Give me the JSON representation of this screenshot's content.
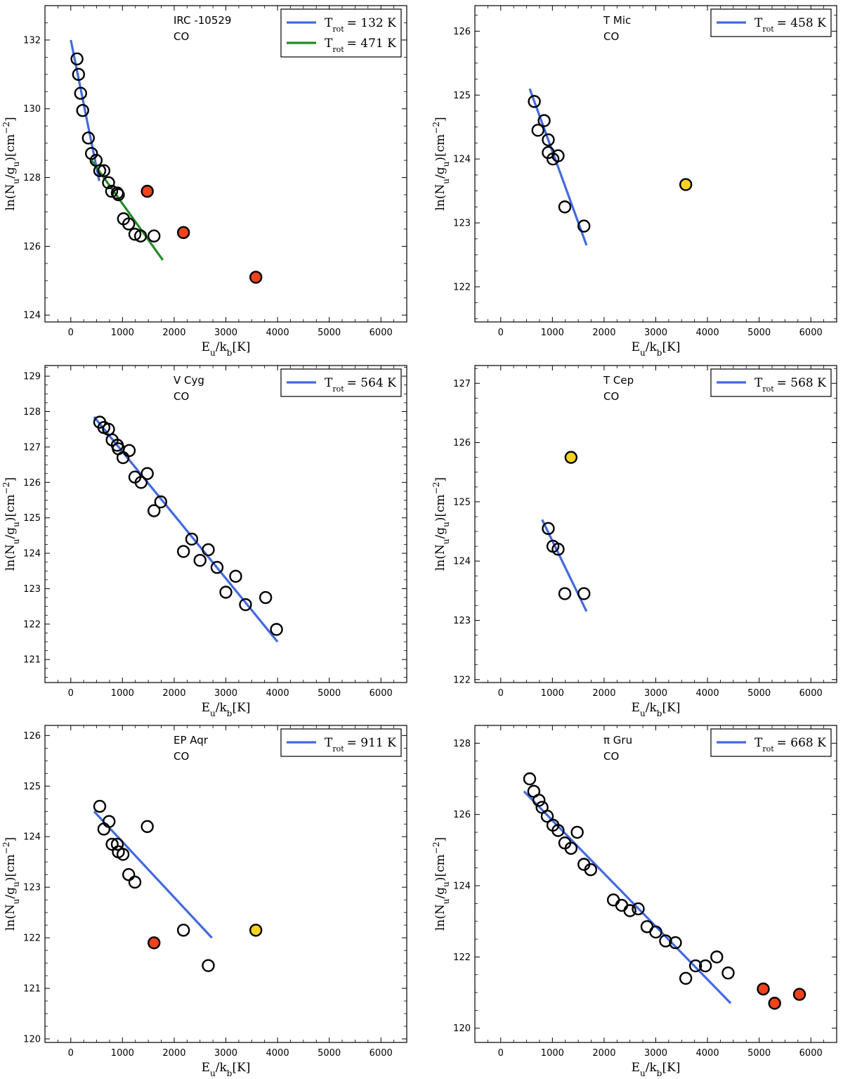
{
  "chart_data": [
    {
      "type": "scatter",
      "title": "",
      "star": "IRC -10529",
      "molecule": "CO",
      "xlabel": "E_u/k_b[K]",
      "ylabel": "ln(N_u/g_u)[cm^-2]",
      "xlim": [
        -500,
        6500
      ],
      "ylim": [
        123.8,
        133.0
      ],
      "xticks": [
        0,
        1000,
        2000,
        3000,
        4000,
        5000,
        6000
      ],
      "yticks": [
        124,
        126,
        128,
        130,
        132
      ],
      "fits": [
        {
          "label": "T_rot = 132 K",
          "label_main": "T",
          "label_sub": "rot",
          "label_value": "= 132 K",
          "color": "#4169E1",
          "x": [
            0,
            550
          ],
          "y": [
            132.0,
            127.9
          ]
        },
        {
          "label": "T_rot = 471 K",
          "label_main": "T",
          "label_sub": "rot",
          "label_value": "= 471 K",
          "color": "#228B22",
          "x": [
            400,
            1780
          ],
          "y": [
            128.5,
            125.6
          ]
        }
      ],
      "points_open": [
        [
          120,
          131.45
        ],
        [
          150,
          131.0
        ],
        [
          190,
          130.45
        ],
        [
          230,
          129.95
        ],
        [
          340,
          129.15
        ],
        [
          400,
          128.7
        ],
        [
          490,
          128.5
        ],
        [
          560,
          128.2
        ],
        [
          640,
          128.2
        ],
        [
          730,
          127.85
        ],
        [
          790,
          127.6
        ],
        [
          900,
          127.55
        ],
        [
          920,
          127.5
        ],
        [
          1020,
          126.8
        ],
        [
          1120,
          126.65
        ],
        [
          1240,
          126.35
        ],
        [
          1350,
          126.3
        ],
        [
          1610,
          126.3
        ]
      ],
      "points_red": [
        [
          1480,
          127.6
        ],
        [
          2180,
          126.4
        ],
        [
          3580,
          125.1
        ]
      ],
      "points_yellow": []
    },
    {
      "type": "scatter",
      "title": "",
      "star": "T Mic",
      "molecule": "CO",
      "xlabel": "E_u/k_b[K]",
      "ylabel": "ln(N_u/g_u)[cm^-2]",
      "xlim": [
        -500,
        6500
      ],
      "ylim": [
        121.45,
        126.4
      ],
      "xticks": [
        0,
        1000,
        2000,
        3000,
        4000,
        5000,
        6000
      ],
      "yticks": [
        122,
        123,
        124,
        125,
        126
      ],
      "fits": [
        {
          "label": "T_rot = 458 K",
          "label_main": "T",
          "label_sub": "rot",
          "label_value": "= 458 K",
          "color": "#4169E1",
          "x": [
            560,
            1660
          ],
          "y": [
            125.1,
            122.65
          ]
        }
      ],
      "points_open": [
        [
          650,
          124.9
        ],
        [
          720,
          124.45
        ],
        [
          840,
          124.6
        ],
        [
          920,
          124.3
        ],
        [
          920,
          124.1
        ],
        [
          1010,
          124.0
        ],
        [
          1110,
          124.05
        ],
        [
          1240,
          123.25
        ],
        [
          1610,
          122.95
        ]
      ],
      "points_red": [],
      "points_yellow": [
        [
          3580,
          123.6
        ]
      ]
    },
    {
      "type": "scatter",
      "title": "",
      "star": "V Cyg",
      "molecule": "CO",
      "xlabel": "E_u/k_b[K]",
      "ylabel": "ln(N_u/g_u)[cm^-2]",
      "xlim": [
        -500,
        6500
      ],
      "ylim": [
        120.35,
        129.3
      ],
      "xticks": [
        0,
        1000,
        2000,
        3000,
        4000,
        5000,
        6000
      ],
      "yticks": [
        121,
        122,
        123,
        124,
        125,
        126,
        127,
        128,
        129
      ],
      "fits": [
        {
          "label": "T_rot = 564 K",
          "label_main": "T",
          "label_sub": "rot",
          "label_value": "= 564 K",
          "color": "#4169E1",
          "x": [
            450,
            4000
          ],
          "y": [
            127.85,
            121.5
          ]
        }
      ],
      "points_open": [
        [
          560,
          127.7
        ],
        [
          640,
          127.55
        ],
        [
          730,
          127.5
        ],
        [
          800,
          127.2
        ],
        [
          900,
          127.05
        ],
        [
          920,
          126.95
        ],
        [
          1010,
          126.7
        ],
        [
          1130,
          126.9
        ],
        [
          1240,
          126.15
        ],
        [
          1360,
          126.0
        ],
        [
          1480,
          126.25
        ],
        [
          1610,
          125.2
        ],
        [
          1740,
          125.45
        ],
        [
          2180,
          124.05
        ],
        [
          2340,
          124.4
        ],
        [
          2500,
          123.8
        ],
        [
          2660,
          124.1
        ],
        [
          2830,
          123.6
        ],
        [
          3000,
          122.9
        ],
        [
          3190,
          123.35
        ],
        [
          3380,
          122.55
        ],
        [
          3770,
          122.75
        ],
        [
          3980,
          121.85
        ]
      ],
      "points_red": [],
      "points_yellow": []
    },
    {
      "type": "scatter",
      "title": "",
      "star": "T Cep",
      "molecule": "CO",
      "xlabel": "E_u/k_b[K]",
      "ylabel": "ln(N_u/g_u)[cm^-2]",
      "xlim": [
        -500,
        6500
      ],
      "ylim": [
        121.95,
        127.3
      ],
      "xticks": [
        0,
        1000,
        2000,
        3000,
        4000,
        5000,
        6000
      ],
      "yticks": [
        122,
        123,
        124,
        125,
        126,
        127
      ],
      "fits": [
        {
          "label": "T_rot = 568 K",
          "label_main": "T",
          "label_sub": "rot",
          "label_value": "= 568 K",
          "color": "#4169E1",
          "x": [
            800,
            1660
          ],
          "y": [
            124.7,
            123.15
          ]
        }
      ],
      "points_open": [
        [
          920,
          124.55
        ],
        [
          1010,
          124.25
        ],
        [
          1110,
          124.2
        ],
        [
          1240,
          123.45
        ],
        [
          1610,
          123.45
        ]
      ],
      "points_red": [],
      "points_yellow": [
        [
          1360,
          125.75
        ]
      ]
    },
    {
      "type": "scatter",
      "title": "",
      "star": "EP Aqr",
      "molecule": "CO",
      "xlabel": "E_u/k_b[K]",
      "ylabel": "ln(N_u/g_u)[cm^-2]",
      "xlim": [
        -500,
        6500
      ],
      "ylim": [
        119.93,
        126.2
      ],
      "xticks": [
        0,
        1000,
        2000,
        3000,
        4000,
        5000,
        6000
      ],
      "yticks": [
        120,
        121,
        122,
        123,
        124,
        125,
        126
      ],
      "fits": [
        {
          "label": "T_rot = 911 K",
          "label_main": "T",
          "label_sub": "rot",
          "label_value": "= 911 K",
          "color": "#4169E1",
          "x": [
            450,
            2730
          ],
          "y": [
            124.5,
            122.0
          ]
        }
      ],
      "points_open": [
        [
          560,
          124.6
        ],
        [
          640,
          124.15
        ],
        [
          740,
          124.3
        ],
        [
          800,
          123.85
        ],
        [
          900,
          123.85
        ],
        [
          920,
          123.7
        ],
        [
          1010,
          123.65
        ],
        [
          1120,
          123.25
        ],
        [
          1240,
          123.1
        ],
        [
          1480,
          124.2
        ],
        [
          2180,
          122.15
        ],
        [
          2660,
          121.45
        ]
      ],
      "points_red": [
        [
          1610,
          121.9
        ]
      ],
      "points_yellow": [
        [
          3580,
          122.15
        ]
      ]
    },
    {
      "type": "scatter",
      "title": "",
      "star": "π Gru",
      "molecule": "CO",
      "xlabel": "E_u/k_b[K]",
      "ylabel": "ln(N_u/g_u)[cm^-2]",
      "xlim": [
        -500,
        6500
      ],
      "ylim": [
        119.6,
        128.5
      ],
      "xticks": [
        0,
        1000,
        2000,
        3000,
        4000,
        5000,
        6000
      ],
      "yticks": [
        120,
        122,
        124,
        126,
        128
      ],
      "fits": [
        {
          "label": "T_rot = 668 K",
          "label_main": "T",
          "label_sub": "rot",
          "label_value": "= 668 K",
          "color": "#4169E1",
          "x": [
            450,
            4450
          ],
          "y": [
            126.65,
            120.7
          ]
        }
      ],
      "points_open": [
        [
          560,
          127.0
        ],
        [
          640,
          126.65
        ],
        [
          740,
          126.4
        ],
        [
          800,
          126.2
        ],
        [
          900,
          125.95
        ],
        [
          1010,
          125.7
        ],
        [
          1110,
          125.55
        ],
        [
          1240,
          125.2
        ],
        [
          1360,
          125.05
        ],
        [
          1480,
          125.5
        ],
        [
          1610,
          124.6
        ],
        [
          1740,
          124.45
        ],
        [
          2180,
          123.6
        ],
        [
          2340,
          123.45
        ],
        [
          2500,
          123.3
        ],
        [
          2660,
          123.35
        ],
        [
          2830,
          122.85
        ],
        [
          3000,
          122.7
        ],
        [
          3190,
          122.45
        ],
        [
          3380,
          122.4
        ],
        [
          3580,
          121.4
        ],
        [
          3770,
          121.75
        ],
        [
          3960,
          121.75
        ],
        [
          4180,
          122.0
        ],
        [
          4400,
          121.55
        ]
      ],
      "points_red": [
        [
          5080,
          121.1
        ],
        [
          5300,
          120.7
        ],
        [
          5780,
          120.95
        ]
      ],
      "points_yellow": []
    }
  ]
}
